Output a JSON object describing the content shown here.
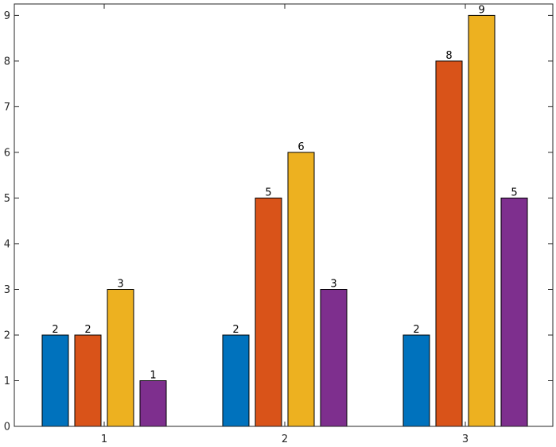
{
  "chart_data": {
    "type": "bar",
    "title": "",
    "xlabel": "",
    "ylabel": "",
    "categories": [
      "1",
      "2",
      "3"
    ],
    "series": [
      {
        "values": [
          2,
          2,
          2
        ],
        "color": "#0072BD"
      },
      {
        "values": [
          2,
          5,
          8
        ],
        "color": "#D95319"
      },
      {
        "values": [
          3,
          6,
          9
        ],
        "color": "#EDB120"
      },
      {
        "values": [
          1,
          3,
          5
        ],
        "color": "#7E2F8E"
      }
    ],
    "ylim": [
      0,
      9.25
    ],
    "yticks": [
      "0",
      "1",
      "2",
      "3",
      "4",
      "5",
      "6",
      "7",
      "8",
      "9"
    ],
    "grid": false,
    "box": true,
    "data_labels": true
  }
}
